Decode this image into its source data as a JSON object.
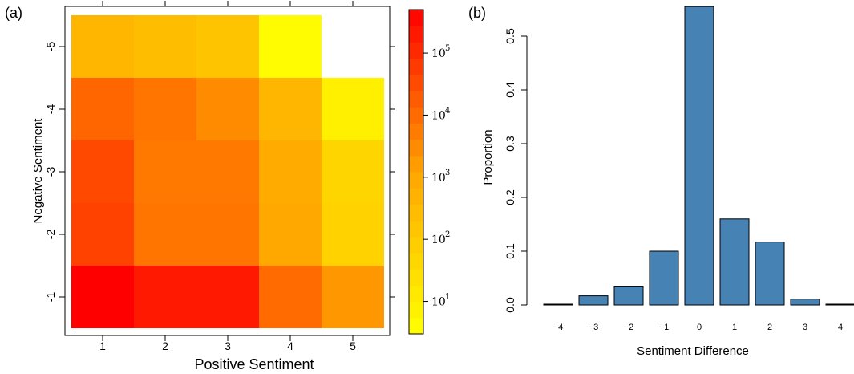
{
  "chart_data": [
    {
      "panel_label": "(a)",
      "type": "heatmap",
      "xlabel": "Positive Sentiment",
      "ylabel": "Negative Sentiment",
      "x_categories": [
        "1",
        "2",
        "3",
        "4",
        "5"
      ],
      "y_categories": [
        "-1",
        "-2",
        "-3",
        "-4",
        "-5"
      ],
      "color_scale": "log10",
      "color_range": [
        3,
        500000
      ],
      "colors": {
        "low": "#ffff00",
        "mid": "#ffa500",
        "high": "#ff0000"
      },
      "colorbar": {
        "ticks": [
          10,
          100,
          1000,
          10000,
          100000
        ],
        "tick_bases": [
          "10",
          "10",
          "10",
          "10",
          "10"
        ],
        "tick_exponents": [
          "1",
          "2",
          "3",
          "4",
          "5"
        ]
      },
      "cells": [
        {
          "x": "1",
          "y": "-5",
          "value": 400
        },
        {
          "x": "2",
          "y": "-5",
          "value": 250
        },
        {
          "x": "3",
          "y": "-5",
          "value": 150
        },
        {
          "x": "4",
          "y": "-5",
          "value": 4
        },
        {
          "x": "5",
          "y": "-5",
          "value": null
        },
        {
          "x": "1",
          "y": "-4",
          "value": 12000
        },
        {
          "x": "2",
          "y": "-4",
          "value": 7000
        },
        {
          "x": "3",
          "y": "-4",
          "value": 3000
        },
        {
          "x": "4",
          "y": "-4",
          "value": 400
        },
        {
          "x": "5",
          "y": "-4",
          "value": 8
        },
        {
          "x": "1",
          "y": "-3",
          "value": 35000
        },
        {
          "x": "2",
          "y": "-3",
          "value": 6000
        },
        {
          "x": "3",
          "y": "-3",
          "value": 6000
        },
        {
          "x": "4",
          "y": "-3",
          "value": 800
        },
        {
          "x": "5",
          "y": "-3",
          "value": 50
        },
        {
          "x": "1",
          "y": "-2",
          "value": 45000
        },
        {
          "x": "2",
          "y": "-2",
          "value": 7000
        },
        {
          "x": "3",
          "y": "-2",
          "value": 7000
        },
        {
          "x": "4",
          "y": "-2",
          "value": 1000
        },
        {
          "x": "5",
          "y": "-2",
          "value": 60
        },
        {
          "x": "1",
          "y": "-1",
          "value": 500000
        },
        {
          "x": "2",
          "y": "-1",
          "value": 200000
        },
        {
          "x": "3",
          "y": "-1",
          "value": 200000
        },
        {
          "x": "4",
          "y": "-1",
          "value": 10000
        },
        {
          "x": "5",
          "y": "-1",
          "value": 2000
        }
      ]
    },
    {
      "panel_label": "(b)",
      "type": "bar",
      "xlabel": "Sentiment Difference",
      "ylabel": "Proportion",
      "categories": [
        "−4",
        "−3",
        "−2",
        "−1",
        "0",
        "1",
        "2",
        "3",
        "4"
      ],
      "values": [
        0.001,
        0.017,
        0.035,
        0.1,
        0.555,
        0.16,
        0.117,
        0.011,
        0.001
      ],
      "ylim": [
        0,
        0.56
      ],
      "y_ticks": [
        "0.0",
        "0.1",
        "0.2",
        "0.3",
        "0.4",
        "0.5"
      ],
      "bar_color": "#4682b4",
      "grid": false
    }
  ]
}
